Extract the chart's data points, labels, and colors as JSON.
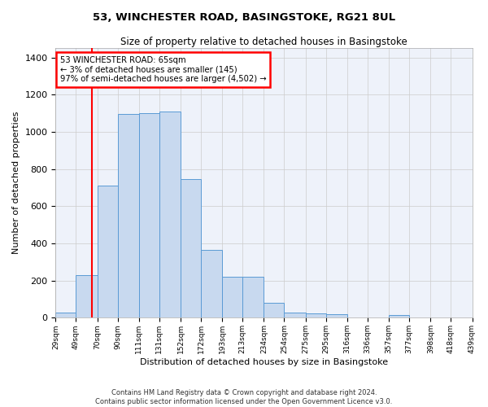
{
  "title": "53, WINCHESTER ROAD, BASINGSTOKE, RG21 8UL",
  "subtitle": "Size of property relative to detached houses in Basingstoke",
  "xlabel": "Distribution of detached houses by size in Basingstoke",
  "ylabel": "Number of detached properties",
  "bar_color": "#c8d9ef",
  "bar_edge_color": "#5b9bd5",
  "background_color": "#eef2fa",
  "grid_color": "#cccccc",
  "footnote1": "Contains HM Land Registry data © Crown copyright and database right 2024.",
  "footnote2": "Contains public sector information licensed under the Open Government Licence v3.0.",
  "annotation_line1": "53 WINCHESTER ROAD: 65sqm",
  "annotation_line2": "← 3% of detached houses are smaller (145)",
  "annotation_line3": "97% of semi-detached houses are larger (4,502) →",
  "red_line_x": 65,
  "bin_edges": [
    29,
    49,
    70,
    90,
    111,
    131,
    152,
    172,
    193,
    213,
    234,
    254,
    275,
    295,
    316,
    336,
    357,
    377,
    398,
    418,
    439
  ],
  "bar_heights": [
    30,
    230,
    710,
    1095,
    1100,
    1110,
    745,
    365,
    220,
    220,
    80,
    30,
    25,
    20,
    0,
    0,
    15,
    0,
    0,
    0
  ],
  "ylim": [
    0,
    1450
  ],
  "yticks": [
    0,
    200,
    400,
    600,
    800,
    1000,
    1200,
    1400
  ]
}
